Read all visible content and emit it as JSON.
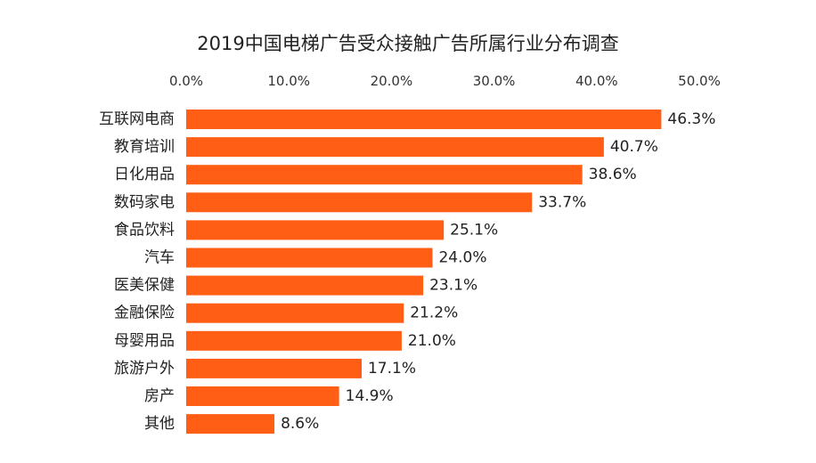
{
  "chart_data": {
    "type": "bar",
    "orientation": "horizontal",
    "title": "2019中国电梯广告受众接触广告所属行业分布调查",
    "xlabel": "",
    "ylabel": "",
    "xlim": [
      0,
      50
    ],
    "x_ticks": [
      "0.0%",
      "10.0%",
      "20.0%",
      "30.0%",
      "40.0%",
      "50.0%"
    ],
    "x_axis_position": "top",
    "grid": false,
    "bar_color": "#FF5E14",
    "categories": [
      "互联网电商",
      "教育培训",
      "日化用品",
      "数码家电",
      "食品饮料",
      "汽车",
      "医美保健",
      "金融保险",
      "母婴用品",
      "旅游户外",
      "房产",
      "其他"
    ],
    "values": [
      46.3,
      40.7,
      38.6,
      33.7,
      25.1,
      24.0,
      23.1,
      21.2,
      21.0,
      17.1,
      14.9,
      8.6
    ],
    "value_labels": [
      "46.3%",
      "40.7%",
      "38.6%",
      "33.7%",
      "25.1%",
      "24.0%",
      "23.1%",
      "21.2%",
      "21.0%",
      "17.1%",
      "14.9%",
      "8.6%"
    ]
  }
}
